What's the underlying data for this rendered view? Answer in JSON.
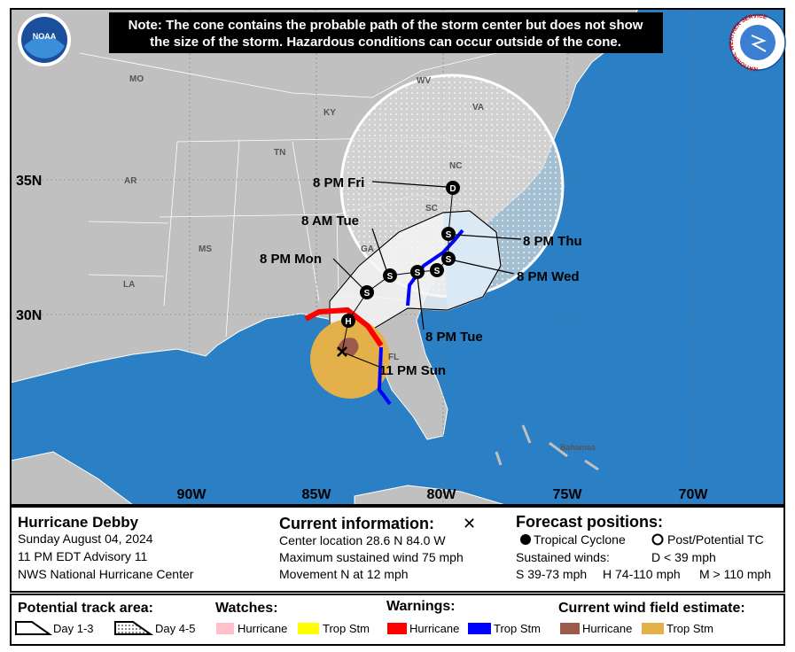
{
  "logos": {
    "noaa": "NOAA",
    "nws": "NATIONAL WEATHER SERVICE"
  },
  "note": [
    "Note: The cone contains the probable path of the storm center but does not show",
    "the size of the storm. Hazardous conditions can occur outside of the cone."
  ],
  "map": {
    "state_labels": [
      "MO",
      "KY",
      "WV",
      "VA",
      "TN",
      "NC",
      "AR",
      "SC",
      "GA",
      "MS",
      "LA",
      "FL"
    ],
    "other_labels": [
      "Bahamas"
    ],
    "latitude_labels": [
      "35N",
      "30N"
    ],
    "longitude_labels": [
      "90W",
      "85W",
      "80W",
      "75W",
      "70W"
    ],
    "current_position": "11 PM Sun",
    "forecast_positions": [
      {
        "time": "8 PM Mon",
        "marker": "S"
      },
      {
        "time": "8 AM Tue",
        "marker": "S"
      },
      {
        "time": "8 PM Tue",
        "marker": "S"
      },
      {
        "time": "8 PM Wed",
        "marker": "S"
      },
      {
        "time": "8 PM Thu",
        "marker": "S"
      },
      {
        "time": "8 PM Fri",
        "marker": "D"
      }
    ],
    "extra_markers": [
      "H",
      "S"
    ]
  },
  "storm": {
    "name": "Hurricane Debby",
    "date": "Sunday August 04, 2024",
    "advisory": "11 PM EDT Advisory 11",
    "source": "NWS National Hurricane Center"
  },
  "current_information": {
    "title": "Current information:",
    "symbol": "✕",
    "lines": [
      "Center location 28.6 N 84.0 W",
      "Maximum sustained wind 75 mph",
      "Movement N at 12 mph"
    ]
  },
  "forecast_key": {
    "title": "Forecast positions:",
    "tropical_cyclone": "Tropical Cyclone",
    "post_tc": "Post/Potential TC",
    "sustained_winds": "Sustained winds:",
    "d": "D < 39 mph",
    "s": "S 39-73 mph",
    "h": "H 74-110 mph",
    "m": "M > 110 mph"
  },
  "legend": {
    "track_area": {
      "title": "Potential track area:",
      "items": [
        "Day 1-3",
        "Day 4-5"
      ]
    },
    "watches": {
      "title": "Watches:",
      "items": [
        "Hurricane",
        "Trop Stm"
      ]
    },
    "warnings": {
      "title": "Warnings:",
      "items": [
        "Hurricane",
        "Trop Stm"
      ]
    },
    "wind_field": {
      "title": "Current wind field estimate:",
      "items": [
        "Hurricane",
        "Trop Stm"
      ]
    }
  }
}
